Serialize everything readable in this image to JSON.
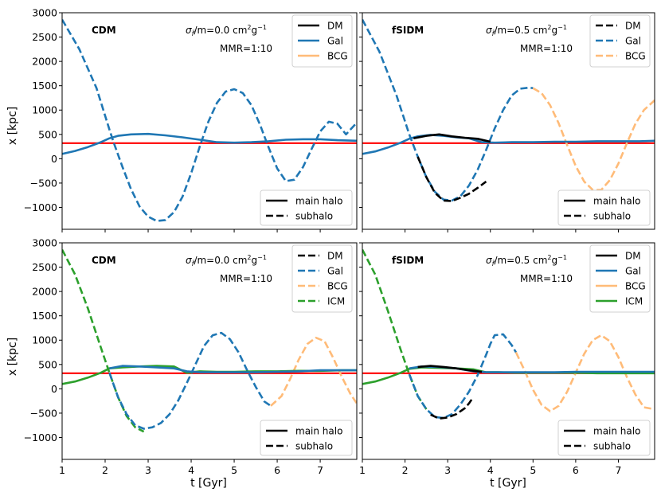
{
  "figure": {
    "xlabel": "t [Gyr]",
    "ylabel": "x [kpc]"
  },
  "legend_style": {
    "main_halo": "main halo",
    "subhalo": "subhalo"
  },
  "colors": {
    "DM": "#000000",
    "Gal": "#1f77b4",
    "BCG": "#ffbb78",
    "ICM": "#2ca02c",
    "reference": "#ff0000"
  },
  "chart_data": [
    {
      "type": "line",
      "title": "CDM",
      "annotation_sigma": "σ",
      "annotation_sigma_sub": "f̃",
      "annotation_sigma_rest": "/m=0.0 cm",
      "annotation_unit_sup1": "2",
      "annotation_unit_mid": "g",
      "annotation_unit_sup2": "−1",
      "annotation_mmr": "MMR=1:10",
      "xlim": [
        1,
        7.85
      ],
      "ylim": [
        -1450,
        3000
      ],
      "xticks": [
        "1",
        "2",
        "3",
        "4",
        "5",
        "6",
        "7"
      ],
      "yticks": [
        "3000",
        "2500",
        "2000",
        "1500",
        "1000",
        "500",
        "0",
        "−500",
        "−1000"
      ],
      "reference_y": 320,
      "legend_components": [
        "DM",
        "Gal",
        "BCG"
      ],
      "legend_component_dash": false,
      "series": [
        {
          "name": "Gal",
          "role": "subhalo",
          "x": [
            1.0,
            1.4,
            1.8,
            2.1,
            2.2,
            2.4,
            2.6,
            2.8,
            3.0,
            3.2,
            3.4,
            3.6,
            3.8,
            4.0,
            4.2,
            4.4,
            4.6,
            4.8,
            5.0,
            5.2,
            5.4,
            5.6,
            5.8,
            6.0,
            6.2,
            6.4,
            6.6,
            6.8,
            7.0,
            7.2,
            7.4,
            7.6,
            7.85
          ],
          "y": [
            2860,
            2250,
            1450,
            600,
            330,
            -160,
            -620,
            -980,
            -1190,
            -1280,
            -1260,
            -1100,
            -780,
            -300,
            250,
            760,
            1150,
            1380,
            1430,
            1350,
            1100,
            700,
            230,
            -200,
            -460,
            -430,
            -170,
            200,
            560,
            760,
            720,
            500,
            740
          ]
        },
        {
          "name": "Gal",
          "role": "main",
          "x": [
            1.0,
            1.3,
            1.6,
            1.9,
            2.1,
            2.3,
            2.6,
            3.0,
            3.4,
            3.8,
            4.2,
            4.6,
            5.0,
            5.4,
            5.8,
            6.2,
            6.6,
            7.0,
            7.4,
            7.85
          ],
          "y": [
            100,
            160,
            240,
            340,
            420,
            470,
            500,
            510,
            480,
            440,
            390,
            340,
            330,
            340,
            360,
            390,
            400,
            400,
            380,
            370
          ]
        }
      ]
    },
    {
      "type": "line",
      "title": "fSIDM",
      "annotation_sigma": "σ",
      "annotation_sigma_sub": "f̃",
      "annotation_sigma_rest": "/m=0.5 cm",
      "annotation_unit_sup1": "2",
      "annotation_unit_mid": "g",
      "annotation_unit_sup2": "−1",
      "annotation_mmr": "MMR=1:10",
      "xlim": [
        1,
        7.85
      ],
      "ylim": [
        -1450,
        3000
      ],
      "xticks": [
        "1",
        "2",
        "3",
        "4",
        "5",
        "6",
        "7"
      ],
      "yticks": [
        "3000",
        "2500",
        "2000",
        "1500",
        "1000",
        "500",
        "0",
        "−500",
        "−1000"
      ],
      "reference_y": 320,
      "legend_components": [
        "DM",
        "Gal",
        "BCG"
      ],
      "legend_component_dash": true,
      "series": [
        {
          "name": "Gal",
          "role": "subhalo",
          "x": [
            1.0,
            1.4,
            1.8,
            2.1,
            2.3,
            2.5,
            2.7,
            2.9,
            3.1,
            3.3,
            3.5,
            3.7,
            3.9,
            4.1,
            4.3,
            4.5,
            4.7,
            4.9,
            5.0
          ],
          "y": [
            2860,
            2200,
            1300,
            500,
            40,
            -380,
            -680,
            -840,
            -860,
            -770,
            -550,
            -230,
            180,
            620,
            1000,
            1300,
            1440,
            1460,
            1450
          ]
        },
        {
          "name": "BCG",
          "role": "subhalo",
          "x": [
            5.0,
            5.2,
            5.4,
            5.6,
            5.8,
            6.0,
            6.2,
            6.4,
            6.6,
            6.8,
            7.0,
            7.2,
            7.4,
            7.6,
            7.85
          ],
          "y": [
            1450,
            1350,
            1100,
            730,
            280,
            -150,
            -470,
            -640,
            -640,
            -440,
            -100,
            320,
            720,
            1000,
            1200
          ]
        },
        {
          "name": "DM",
          "role": "subhalo",
          "x": [
            2.3,
            2.5,
            2.7,
            2.9,
            3.1,
            3.3,
            3.5,
            3.7,
            3.9
          ],
          "y": [
            40,
            -380,
            -700,
            -860,
            -870,
            -800,
            -720,
            -600,
            -470
          ]
        },
        {
          "name": "Gal",
          "role": "main",
          "x": [
            1.0,
            1.3,
            1.6,
            1.9,
            2.1,
            2.3,
            2.6,
            2.9,
            3.2,
            3.5,
            3.8,
            4.1,
            4.5,
            5.0,
            5.5,
            6.0,
            6.5,
            7.0,
            7.5,
            7.85
          ],
          "y": [
            100,
            150,
            230,
            330,
            410,
            460,
            490,
            470,
            440,
            420,
            340,
            330,
            340,
            340,
            350,
            350,
            360,
            360,
            360,
            370
          ]
        },
        {
          "name": "DM",
          "role": "main",
          "x": [
            2.2,
            2.5,
            2.8,
            3.1,
            3.4,
            3.7,
            4.0
          ],
          "y": [
            420,
            470,
            500,
            460,
            430,
            410,
            350
          ]
        }
      ]
    },
    {
      "type": "line",
      "title": "CDM",
      "annotation_sigma": "σ",
      "annotation_sigma_sub": "f̃",
      "annotation_sigma_rest": "/m=0.0 cm",
      "annotation_unit_sup1": "2",
      "annotation_unit_mid": "g",
      "annotation_unit_sup2": "−1",
      "annotation_mmr": "MMR=1:10",
      "xlim": [
        1,
        7.85
      ],
      "ylim": [
        -1450,
        3000
      ],
      "xticks": [
        "1",
        "2",
        "3",
        "4",
        "5",
        "6",
        "7"
      ],
      "yticks": [
        "3000",
        "2500",
        "2000",
        "1500",
        "1000",
        "500",
        "0",
        "−500",
        "−1000"
      ],
      "reference_y": 320,
      "legend_components": [
        "DM",
        "Gal",
        "BCG",
        "ICM"
      ],
      "legend_component_dash": true,
      "series": [
        {
          "name": "ICM",
          "role": "subhalo",
          "x": [
            1.0,
            1.3,
            1.6,
            1.9,
            2.1,
            2.3,
            2.5,
            2.7,
            2.9
          ],
          "y": [
            2860,
            2350,
            1650,
            850,
            330,
            -170,
            -560,
            -790,
            -880
          ]
        },
        {
          "name": "Gal",
          "role": "subhalo",
          "x": [
            2.1,
            2.3,
            2.5,
            2.7,
            2.9,
            3.1,
            3.3,
            3.5,
            3.7,
            3.9,
            4.1,
            4.3,
            4.5,
            4.7,
            4.9,
            5.1,
            5.3,
            5.5,
            5.7,
            5.85
          ],
          "y": [
            330,
            -170,
            -520,
            -750,
            -820,
            -790,
            -700,
            -520,
            -240,
            120,
            500,
            880,
            1100,
            1150,
            1020,
            750,
            380,
            40,
            -260,
            -350
          ]
        },
        {
          "name": "BCG",
          "role": "subhalo",
          "x": [
            5.85,
            6.1,
            6.3,
            6.5,
            6.7,
            6.9,
            7.1,
            7.3,
            7.5,
            7.7,
            7.85
          ],
          "y": [
            -350,
            -150,
            200,
            600,
            920,
            1050,
            980,
            640,
            250,
            -100,
            -300
          ]
        },
        {
          "name": "ICM",
          "role": "main",
          "x": [
            1.0,
            1.3,
            1.6,
            1.9,
            2.1,
            2.4,
            2.8,
            3.2,
            3.6,
            3.9,
            4.2,
            4.6,
            5.0,
            5.5,
            6.0,
            6.5,
            7.0,
            7.5,
            7.85
          ],
          "y": [
            100,
            150,
            230,
            330,
            420,
            440,
            460,
            470,
            460,
            330,
            360,
            350,
            350,
            360,
            360,
            370,
            370,
            380,
            380
          ]
        },
        {
          "name": "Gal",
          "role": "main",
          "x": [
            2.1,
            2.4,
            2.8,
            3.2,
            3.6,
            3.9,
            4.2,
            4.6,
            5.0,
            5.5,
            6.0,
            6.5,
            7.0,
            7.5,
            7.85
          ],
          "y": [
            420,
            470,
            460,
            440,
            420,
            360,
            340,
            340,
            340,
            340,
            350,
            360,
            380,
            380,
            380
          ]
        }
      ]
    },
    {
      "type": "line",
      "title": "fSIDM",
      "annotation_sigma": "σ",
      "annotation_sigma_sub": "f̃",
      "annotation_sigma_rest": "/m=0.5 cm",
      "annotation_unit_sup1": "2",
      "annotation_unit_mid": "g",
      "annotation_unit_sup2": "−1",
      "annotation_mmr": "MMR=1:10",
      "xlim": [
        1,
        7.85
      ],
      "ylim": [
        -1450,
        3000
      ],
      "xticks": [
        "1",
        "2",
        "3",
        "4",
        "5",
        "6",
        "7"
      ],
      "yticks": [
        "3000",
        "2500",
        "2000",
        "1500",
        "1000",
        "500",
        "0",
        "−500",
        "−1000"
      ],
      "reference_y": 320,
      "legend_components": [
        "DM",
        "Gal",
        "BCG",
        "ICM"
      ],
      "legend_component_dash": false,
      "series": [
        {
          "name": "ICM",
          "role": "subhalo",
          "x": [
            1.0,
            1.3,
            1.6,
            1.9,
            2.1,
            2.3,
            2.5
          ],
          "y": [
            2860,
            2350,
            1600,
            800,
            300,
            -150,
            -420
          ]
        },
        {
          "name": "Gal",
          "role": "subhalo",
          "x": [
            2.1,
            2.3,
            2.5,
            2.7,
            2.9,
            3.1,
            3.3,
            3.5,
            3.7,
            3.9,
            4.0,
            4.1,
            4.3,
            4.5,
            4.6
          ],
          "y": [
            300,
            -150,
            -420,
            -580,
            -600,
            -520,
            -320,
            -60,
            280,
            700,
            920,
            1100,
            1120,
            900,
            750
          ]
        },
        {
          "name": "BCG",
          "role": "subhalo",
          "x": [
            4.6,
            4.8,
            5.0,
            5.2,
            5.4,
            5.6,
            5.8,
            6.0,
            6.2,
            6.4,
            6.6,
            6.8,
            7.0,
            7.2,
            7.4,
            7.6,
            7.85
          ],
          "y": [
            750,
            380,
            -20,
            -330,
            -460,
            -350,
            -60,
            330,
            720,
            1000,
            1100,
            980,
            650,
            240,
            -120,
            -380,
            -420
          ]
        },
        {
          "name": "DM",
          "role": "subhalo",
          "x": [
            2.6,
            2.8,
            3.0,
            3.2,
            3.4,
            3.5,
            3.6
          ],
          "y": [
            -530,
            -610,
            -590,
            -520,
            -400,
            -300,
            -170
          ]
        },
        {
          "name": "ICM",
          "role": "main",
          "x": [
            1.0,
            1.3,
            1.6,
            1.9,
            2.1,
            2.4,
            2.8,
            3.2,
            3.6,
            3.9,
            4.2,
            4.6,
            5.0,
            5.5,
            6.0,
            6.5,
            7.0,
            7.5,
            7.85
          ],
          "y": [
            100,
            150,
            230,
            330,
            410,
            440,
            430,
            420,
            400,
            340,
            340,
            330,
            330,
            330,
            330,
            320,
            320,
            320,
            320
          ]
        },
        {
          "name": "Gal",
          "role": "main",
          "x": [
            2.1,
            2.4,
            2.8,
            3.2,
            3.6,
            3.9,
            4.2,
            4.6,
            5.0,
            5.5,
            6.0,
            6.5,
            7.0,
            7.5,
            7.85
          ],
          "y": [
            420,
            460,
            450,
            420,
            360,
            340,
            340,
            340,
            340,
            340,
            350,
            350,
            350,
            350,
            350
          ]
        },
        {
          "name": "DM",
          "role": "main",
          "x": [
            2.3,
            2.6,
            2.9,
            3.2,
            3.5,
            3.8
          ],
          "y": [
            450,
            470,
            450,
            420,
            380,
            350
          ]
        }
      ]
    }
  ]
}
